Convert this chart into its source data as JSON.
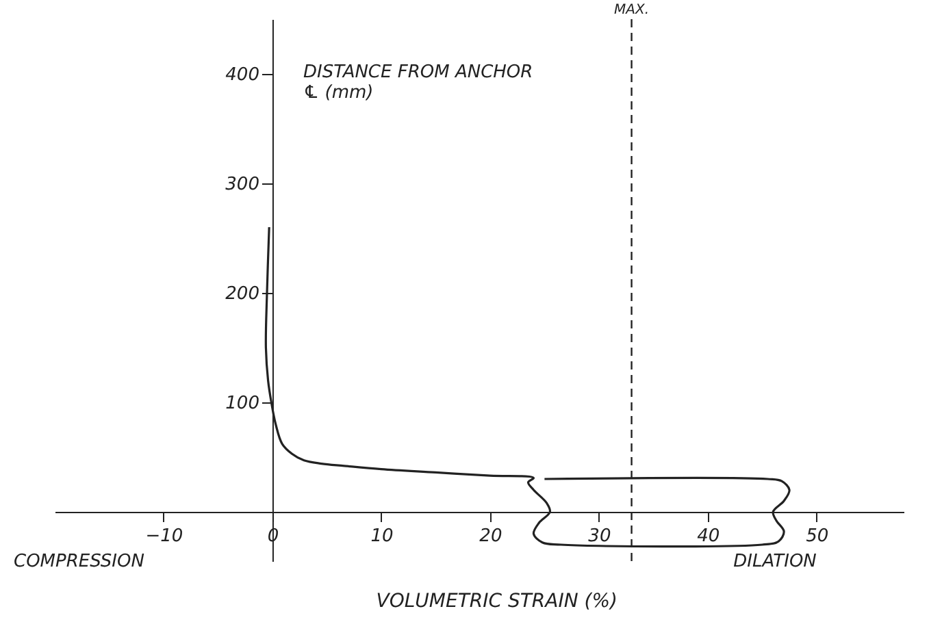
{
  "chart_data": {
    "type": "line",
    "xlabel": "VOLUMETRIC STRAIN (%)",
    "ylabel": "DISTANCE FROM ANCHOR ℄ (mm)",
    "annotations": [
      "COMPRESSION",
      "DILATION"
    ],
    "series": [
      {
        "color": "#222222",
        "x": [
          -0.3,
          -0.5,
          -0.6,
          -0.4,
          -0.1,
          0.3,
          0.9,
          1.8,
          2.9,
          4.5,
          6.6,
          10,
          15,
          20,
          24,
          23.5,
          24,
          25.2,
          25.5,
          24.5,
          24,
          24.8,
          26.5,
          45,
          46.5,
          47,
          46.3,
          46,
          47,
          47.5,
          46.8,
          45.5,
          25
        ],
        "values": [
          260,
          200,
          150,
          120,
          100,
          80,
          62,
          53,
          47,
          44,
          42,
          39,
          36,
          33,
          31,
          27,
          20,
          8,
          0,
          -10,
          -20,
          -28,
          -30,
          -30,
          -27,
          -18,
          -8,
          0,
          10,
          20,
          28,
          30,
          30
        ]
      }
    ],
    "xlim": [
      -20,
      58
    ],
    "ylim": [
      -45,
      450
    ],
    "xticks": [
      -10,
      0,
      10,
      20,
      30,
      40,
      50
    ],
    "yticks": [
      100,
      200,
      300,
      400
    ],
    "ref_lines": [
      {
        "axis": "x",
        "value": 33,
        "label": "MAX.",
        "line_style": "dashed"
      }
    ],
    "grid": false,
    "marker": "none",
    "line_style": "solid"
  }
}
